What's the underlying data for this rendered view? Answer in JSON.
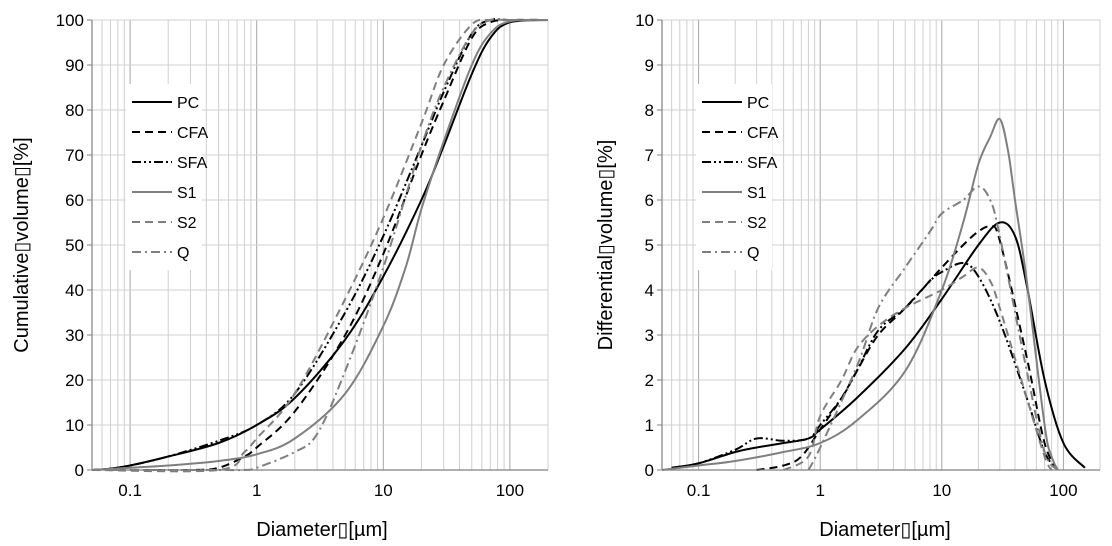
{
  "chart_data": [
    {
      "type": "line",
      "xlabel": "Diameter▯[µm]",
      "ylabel": "Cumulative▯volume▯[%]",
      "xscale": "log",
      "xlim": [
        0.05,
        200
      ],
      "ylim": [
        0,
        100
      ],
      "x_tick_labels": [
        "0.1",
        "1",
        "10",
        "100"
      ],
      "y_tick_labels": [
        "0",
        "10",
        "20",
        "30",
        "40",
        "50",
        "60",
        "70",
        "80",
        "90",
        "100"
      ],
      "grid": true,
      "legend_position": "left",
      "series": [
        {
          "name": "PC",
          "color": "#000000",
          "dash": "solid",
          "x": [
            0.05,
            0.07,
            0.1,
            0.2,
            0.5,
            1,
            2,
            5,
            10,
            20,
            30,
            50,
            70,
            100,
            200
          ],
          "y": [
            0,
            0.3,
            1,
            3,
            6,
            10,
            16,
            29,
            43,
            60,
            72,
            88,
            96,
            99.5,
            100
          ]
        },
        {
          "name": "CFA",
          "color": "#000000",
          "dash": "dashed",
          "x": [
            0.05,
            0.3,
            0.5,
            0.8,
            1,
            2,
            5,
            10,
            20,
            30,
            50,
            70,
            100,
            200
          ],
          "y": [
            0,
            0,
            0.5,
            3,
            5,
            13,
            30,
            48,
            70,
            82,
            96,
            99.5,
            100,
            100
          ]
        },
        {
          "name": "SFA",
          "color": "#000000",
          "dash": "dashdotdot",
          "x": [
            0.05,
            0.07,
            0.1,
            0.2,
            0.5,
            1,
            2,
            5,
            10,
            20,
            30,
            50,
            70,
            100,
            200
          ],
          "y": [
            0,
            0.3,
            1,
            3,
            6.5,
            10,
            17,
            35,
            52,
            72,
            84,
            97,
            100,
            100,
            100
          ]
        },
        {
          "name": "S1",
          "color": "#7f7f7f",
          "dash": "solid",
          "x": [
            0.05,
            0.1,
            0.2,
            0.5,
            1,
            2,
            5,
            10,
            15,
            20,
            30,
            50,
            70,
            100,
            200
          ],
          "y": [
            0,
            0.5,
            1,
            2,
            3.5,
            7,
            17,
            32,
            45,
            58,
            73,
            90,
            97,
            99.7,
            100
          ]
        },
        {
          "name": "S2",
          "color": "#7f7f7f",
          "dash": "dashed",
          "x": [
            0.05,
            0.5,
            0.8,
            1,
            2,
            5,
            10,
            20,
            30,
            50,
            70,
            100,
            200
          ],
          "y": [
            0,
            0,
            4,
            7,
            17,
            38,
            56,
            77,
            90,
            99,
            100,
            100,
            100
          ]
        },
        {
          "name": "Q",
          "color": "#7f7f7f",
          "dash": "dashdot",
          "x": [
            0.05,
            0.5,
            0.8,
            1,
            2,
            3,
            5,
            10,
            20,
            30,
            50,
            70,
            100,
            200
          ],
          "y": [
            0,
            0,
            0,
            0.5,
            4,
            8,
            22,
            45,
            72,
            85,
            97,
            100,
            100,
            100
          ]
        }
      ]
    },
    {
      "type": "line",
      "xlabel": "Diameter▯[µm]",
      "ylabel": "Differential▯volume▯[%]",
      "xscale": "log",
      "xlim": [
        0.05,
        200
      ],
      "ylim": [
        0,
        10
      ],
      "x_tick_labels": [
        "0.1",
        "1",
        "10",
        "100"
      ],
      "y_tick_labels": [
        "0",
        "1",
        "2",
        "3",
        "4",
        "5",
        "6",
        "7",
        "8",
        "9",
        "10"
      ],
      "grid": true,
      "legend_position": "left",
      "series": [
        {
          "name": "PC",
          "color": "#000000",
          "dash": "solid",
          "x": [
            0.06,
            0.1,
            0.2,
            0.3,
            0.5,
            0.8,
            1,
            2,
            5,
            10,
            20,
            30,
            40,
            50,
            70,
            100,
            150
          ],
          "y": [
            0.05,
            0.15,
            0.4,
            0.5,
            0.6,
            0.7,
            0.9,
            1.6,
            2.7,
            3.8,
            5.0,
            5.5,
            5.2,
            4.1,
            2.0,
            0.6,
            0.05
          ]
        },
        {
          "name": "CFA",
          "color": "#000000",
          "dash": "dashed",
          "x": [
            0.3,
            0.5,
            0.7,
            1,
            1.5,
            2,
            3,
            5,
            10,
            15,
            20,
            25,
            30,
            50,
            70,
            90
          ],
          "y": [
            0,
            0.1,
            0.3,
            0.9,
            1.6,
            2.2,
            3.0,
            3.6,
            4.5,
            5.0,
            5.3,
            5.4,
            5.1,
            2.5,
            0.6,
            0
          ]
        },
        {
          "name": "SFA",
          "color": "#000000",
          "dash": "dashdotdot",
          "x": [
            0.06,
            0.1,
            0.2,
            0.3,
            0.5,
            0.8,
            1,
            1.5,
            2,
            3,
            5,
            8,
            10,
            15,
            20,
            30,
            50,
            70,
            90
          ],
          "y": [
            0.05,
            0.15,
            0.45,
            0.7,
            0.65,
            0.7,
            1.0,
            1.6,
            2.2,
            3.1,
            3.6,
            4.2,
            4.4,
            4.6,
            4.3,
            3.3,
            1.6,
            0.4,
            0
          ]
        },
        {
          "name": "S1",
          "color": "#7f7f7f",
          "dash": "solid",
          "x": [
            0.05,
            0.1,
            0.2,
            0.5,
            1,
            2,
            5,
            10,
            15,
            20,
            25,
            30,
            35,
            40,
            50,
            70,
            80,
            90
          ],
          "y": [
            0,
            0.1,
            0.2,
            0.4,
            0.6,
            1.1,
            2.2,
            4.0,
            5.5,
            6.8,
            7.4,
            7.8,
            7.1,
            6.0,
            4.2,
            1.0,
            0.3,
            0
          ]
        },
        {
          "name": "S2",
          "color": "#7f7f7f",
          "dash": "dashed",
          "x": [
            0.5,
            0.8,
            1,
            1.5,
            2,
            3,
            5,
            10,
            15,
            20,
            25,
            30,
            50,
            70,
            80
          ],
          "y": [
            0,
            0.3,
            1.2,
            2.0,
            2.7,
            3.2,
            3.6,
            4.0,
            4.3,
            4.5,
            4.2,
            3.6,
            1.6,
            0.3,
            0
          ]
        },
        {
          "name": "Q",
          "color": "#7f7f7f",
          "dash": "dashdot",
          "x": [
            0.8,
            1,
            2,
            3,
            5,
            8,
            10,
            15,
            20,
            25,
            30,
            50,
            70,
            90
          ],
          "y": [
            0,
            0.5,
            2.3,
            3.6,
            4.5,
            5.3,
            5.7,
            6.0,
            6.3,
            6.0,
            5.2,
            2.2,
            0.4,
            0
          ]
        }
      ]
    }
  ]
}
